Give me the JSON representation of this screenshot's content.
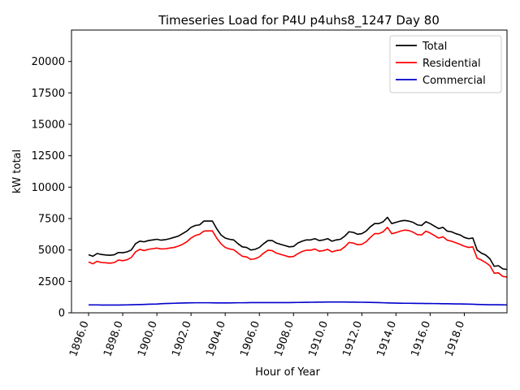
{
  "chart_data": {
    "type": "line",
    "title": "Timeseries Load for P4U p4uhs8_1247  Day 80",
    "xlabel": "Hour of Year",
    "ylabel": "kW total",
    "xlim": [
      1895.0,
      1920.5
    ],
    "ylim": [
      0,
      22500
    ],
    "xticks": [
      1896,
      1898,
      1900,
      1902,
      1904,
      1906,
      1908,
      1910,
      1912,
      1914,
      1916,
      1918
    ],
    "xtick_labels": [
      "1896.0",
      "1898.0",
      "1900.0",
      "1902.0",
      "1904.0",
      "1906.0",
      "1908.0",
      "1910.0",
      "1912.0",
      "1914.0",
      "1916.0",
      "1918.0"
    ],
    "yticks": [
      0,
      2500,
      5000,
      7500,
      10000,
      12500,
      15000,
      17500,
      20000
    ],
    "ytick_labels": [
      "0",
      "2500",
      "5000",
      "7500",
      "10000",
      "12500",
      "15000",
      "17500",
      "20000"
    ],
    "legend_position": "top-right",
    "x_start": 1896.0,
    "x_step": 0.25,
    "series": [
      {
        "name": "Total",
        "color": "#000000",
        "values": [
          4620,
          4500,
          4720,
          4640,
          4600,
          4580,
          4620,
          4800,
          4780,
          4850,
          5000,
          5500,
          5700,
          5650,
          5750,
          5800,
          5850,
          5780,
          5820,
          5900,
          6000,
          6100,
          6300,
          6500,
          6800,
          6950,
          7000,
          7300,
          7300,
          7300,
          6700,
          6200,
          5950,
          5850,
          5800,
          5500,
          5250,
          5200,
          5000,
          5050,
          5200,
          5500,
          5750,
          5750,
          5550,
          5450,
          5350,
          5250,
          5280,
          5550,
          5700,
          5800,
          5800,
          5900,
          5750,
          5800,
          5900,
          5700,
          5800,
          5850,
          6100,
          6450,
          6400,
          6250,
          6300,
          6500,
          6850,
          7100,
          7100,
          7250,
          7600,
          7100,
          7200,
          7300,
          7350,
          7300,
          7200,
          7000,
          6950,
          7250,
          7100,
          6900,
          6700,
          6800,
          6500,
          6450,
          6300,
          6200,
          6000,
          5900,
          5950,
          5000,
          4750,
          4600,
          4300,
          3700,
          3750,
          3500,
          3450
        ]
      },
      {
        "name": "Residential",
        "color": "#ff0000",
        "values": [
          4050,
          3900,
          4100,
          4000,
          3980,
          3950,
          4000,
          4200,
          4150,
          4220,
          4400,
          4850,
          5050,
          4950,
          5050,
          5100,
          5150,
          5080,
          5100,
          5150,
          5200,
          5300,
          5450,
          5650,
          5950,
          6150,
          6250,
          6500,
          6520,
          6520,
          5950,
          5500,
          5200,
          5080,
          5020,
          4750,
          4500,
          4450,
          4250,
          4300,
          4450,
          4750,
          4980,
          4950,
          4750,
          4650,
          4550,
          4450,
          4480,
          4700,
          4880,
          4980,
          4980,
          5080,
          4900,
          4950,
          5050,
          4850,
          4950,
          5000,
          5250,
          5600,
          5550,
          5420,
          5450,
          5650,
          6000,
          6300,
          6300,
          6450,
          6800,
          6300,
          6380,
          6500,
          6580,
          6550,
          6420,
          6220,
          6200,
          6500,
          6350,
          6150,
          5950,
          6050,
          5780,
          5700,
          5580,
          5450,
          5300,
          5200,
          5250,
          4350,
          4200,
          4000,
          3750,
          3150,
          3180,
          2900,
          2850
        ]
      },
      {
        "name": "Commercial",
        "color": "#0000cc",
        "values": [
          630,
          630,
          630,
          620,
          620,
          620,
          620,
          620,
          625,
          630,
          640,
          650,
          660,
          670,
          680,
          690,
          700,
          720,
          740,
          750,
          760,
          770,
          780,
          790,
          795,
          800,
          800,
          800,
          800,
          795,
          790,
          790,
          790,
          790,
          795,
          800,
          800,
          805,
          810,
          810,
          815,
          815,
          815,
          815,
          815,
          815,
          815,
          815,
          820,
          825,
          830,
          835,
          840,
          845,
          850,
          855,
          860,
          860,
          860,
          860,
          860,
          855,
          850,
          845,
          840,
          835,
          830,
          820,
          810,
          800,
          790,
          780,
          770,
          765,
          760,
          760,
          755,
          750,
          745,
          740,
          740,
          735,
          730,
          725,
          720,
          715,
          710,
          705,
          700,
          690,
          680,
          670,
          660,
          650,
          645,
          640,
          640,
          635,
          630
        ]
      }
    ]
  }
}
